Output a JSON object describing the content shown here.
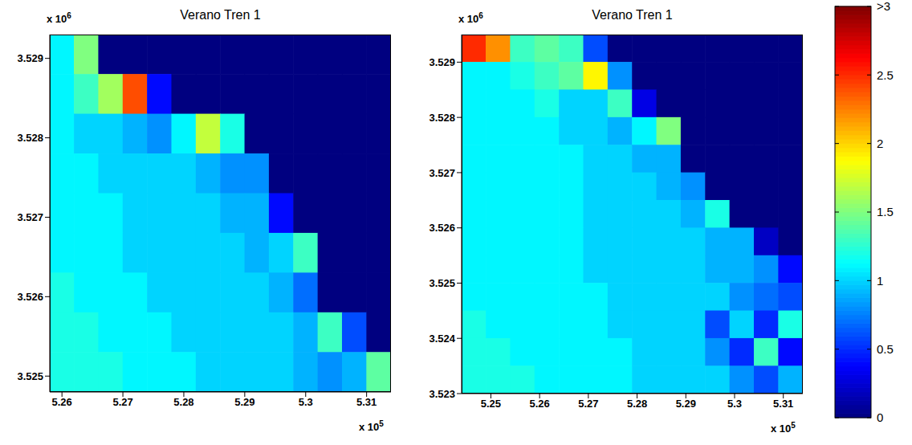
{
  "chart_data": [
    {
      "type": "heatmap",
      "title": "Verano Tren 1",
      "x": [
        5.26,
        5.264,
        5.268,
        5.272,
        5.276,
        5.28,
        5.284,
        5.288,
        5.292,
        5.296,
        5.3,
        5.304,
        5.308,
        5.312
      ],
      "y": [
        3.52905,
        3.52855,
        3.52805,
        3.52755,
        3.52705,
        3.52655,
        3.52605,
        3.52555,
        3.52505
      ],
      "values": [
        [
          1.1,
          1.5,
          0,
          0,
          0,
          0,
          0,
          0,
          0,
          0,
          0,
          0,
          0,
          0
        ],
        [
          1.1,
          1.3,
          1.6,
          2.4,
          0.4,
          0,
          0,
          0,
          0,
          0,
          0,
          0,
          0,
          0
        ],
        [
          1.1,
          1.0,
          1.0,
          0.9,
          0.8,
          1.1,
          1.7,
          1.2,
          0,
          0,
          0,
          0,
          0,
          0
        ],
        [
          1.1,
          1.1,
          1.0,
          1.0,
          1.0,
          1.0,
          0.9,
          0.8,
          0.8,
          0,
          0,
          0,
          0,
          0
        ],
        [
          1.1,
          1.1,
          1.1,
          1.0,
          1.0,
          1.0,
          1.0,
          0.9,
          0.9,
          0.4,
          0,
          0,
          0,
          0
        ],
        [
          1.1,
          1.1,
          1.1,
          1.0,
          1.0,
          1.0,
          1.0,
          1.0,
          0.9,
          1.0,
          1.3,
          0,
          0,
          0
        ],
        [
          1.2,
          1.1,
          1.1,
          1.1,
          1.0,
          1.0,
          1.0,
          1.0,
          1.0,
          0.9,
          0.7,
          0,
          0,
          0
        ],
        [
          1.2,
          1.2,
          1.1,
          1.1,
          1.1,
          1.0,
          1.0,
          1.0,
          1.0,
          1.0,
          0.9,
          1.3,
          0.6,
          0
        ],
        [
          1.2,
          1.2,
          1.2,
          1.1,
          1.1,
          1.1,
          1.0,
          1.0,
          1.0,
          1.0,
          0.9,
          0.8,
          0.9,
          1.4
        ]
      ],
      "xlim": [
        5.258,
        5.314
      ],
      "xticks": [
        5.26,
        5.27,
        5.28,
        5.29,
        5.3,
        5.31
      ],
      "ylim": [
        3.5248,
        3.5293
      ],
      "yticks": [
        3.525,
        3.526,
        3.527,
        3.528,
        3.529
      ],
      "x_multiplier": {
        "base": "x 10",
        "exponent": "5"
      },
      "y_multiplier": {
        "base": "x 10",
        "exponent": "6"
      }
    },
    {
      "type": "heatmap",
      "title": "Verano Tren 1",
      "x": [
        5.2465,
        5.2515,
        5.2565,
        5.2615,
        5.2665,
        5.2715,
        5.2765,
        5.2815,
        5.2865,
        5.2915,
        5.2965,
        5.3015,
        5.3065,
        5.3115
      ],
      "y": [
        3.52925,
        3.52875,
        3.52825,
        3.52775,
        3.52725,
        3.52675,
        3.52625,
        3.52575,
        3.52525,
        3.52475,
        3.52425,
        3.52375,
        3.52325
      ],
      "values": [
        [
          2.5,
          2.2,
          1.3,
          1.4,
          1.3,
          0.6,
          0,
          0,
          0,
          0,
          0,
          0,
          0,
          0
        ],
        [
          1.1,
          1.1,
          1.2,
          1.3,
          1.4,
          1.9,
          0.8,
          0,
          0,
          0,
          0,
          0,
          0,
          0
        ],
        [
          1.1,
          1.1,
          1.1,
          1.2,
          1.0,
          1.0,
          1.3,
          0.3,
          0,
          0,
          0,
          0,
          0,
          0
        ],
        [
          1.1,
          1.1,
          1.1,
          1.1,
          1.0,
          1.0,
          0.9,
          1.1,
          1.5,
          0,
          0,
          0,
          0,
          0
        ],
        [
          1.1,
          1.1,
          1.1,
          1.1,
          1.1,
          1.0,
          1.0,
          0.9,
          0.9,
          0,
          0,
          0,
          0,
          0
        ],
        [
          1.1,
          1.1,
          1.1,
          1.1,
          1.1,
          1.0,
          1.0,
          1.0,
          0.9,
          0.8,
          0,
          0,
          0,
          0
        ],
        [
          1.1,
          1.1,
          1.1,
          1.1,
          1.1,
          1.0,
          1.0,
          1.0,
          1.0,
          0.9,
          1.2,
          0,
          0,
          0
        ],
        [
          1.1,
          1.1,
          1.1,
          1.1,
          1.1,
          1.0,
          1.0,
          1.0,
          1.0,
          1.0,
          0.9,
          0.9,
          0.2,
          0
        ],
        [
          1.1,
          1.1,
          1.1,
          1.1,
          1.1,
          1.0,
          1.0,
          1.0,
          1.0,
          1.0,
          0.9,
          0.9,
          0.8,
          0.4
        ],
        [
          1.1,
          1.1,
          1.1,
          1.1,
          1.1,
          1.1,
          1.0,
          1.0,
          1.0,
          1.0,
          1.0,
          0.8,
          0.7,
          0.6
        ],
        [
          1.2,
          1.1,
          1.1,
          1.1,
          1.1,
          1.1,
          1.0,
          1.0,
          1.0,
          1.0,
          0.6,
          1.0,
          0.5,
          1.2
        ],
        [
          1.2,
          1.2,
          1.1,
          1.1,
          1.1,
          1.1,
          1.1,
          1.0,
          1.0,
          1.0,
          0.8,
          0.5,
          1.3,
          0.4
        ],
        [
          1.2,
          1.2,
          1.2,
          1.1,
          1.1,
          1.1,
          1.1,
          1.0,
          1.0,
          1.0,
          1.0,
          0.8,
          0.6,
          0.9
        ]
      ],
      "xlim": [
        5.244,
        5.314
      ],
      "xticks": [
        5.25,
        5.26,
        5.27,
        5.28,
        5.29,
        5.3,
        5.31
      ],
      "ylim": [
        3.523,
        3.5295
      ],
      "yticks": [
        3.523,
        3.524,
        3.525,
        3.526,
        3.527,
        3.528,
        3.529
      ],
      "x_multiplier": {
        "base": "x 10",
        "exponent": "5"
      },
      "y_multiplier": {
        "base": "x 10",
        "exponent": "6"
      }
    }
  ],
  "colorbar": {
    "range": [
      0,
      3
    ],
    "ticks": [
      0,
      0.5,
      1,
      1.5,
      2,
      2.5,
      {
        "value": 3,
        "label": ">3"
      }
    ],
    "color": "jet"
  }
}
